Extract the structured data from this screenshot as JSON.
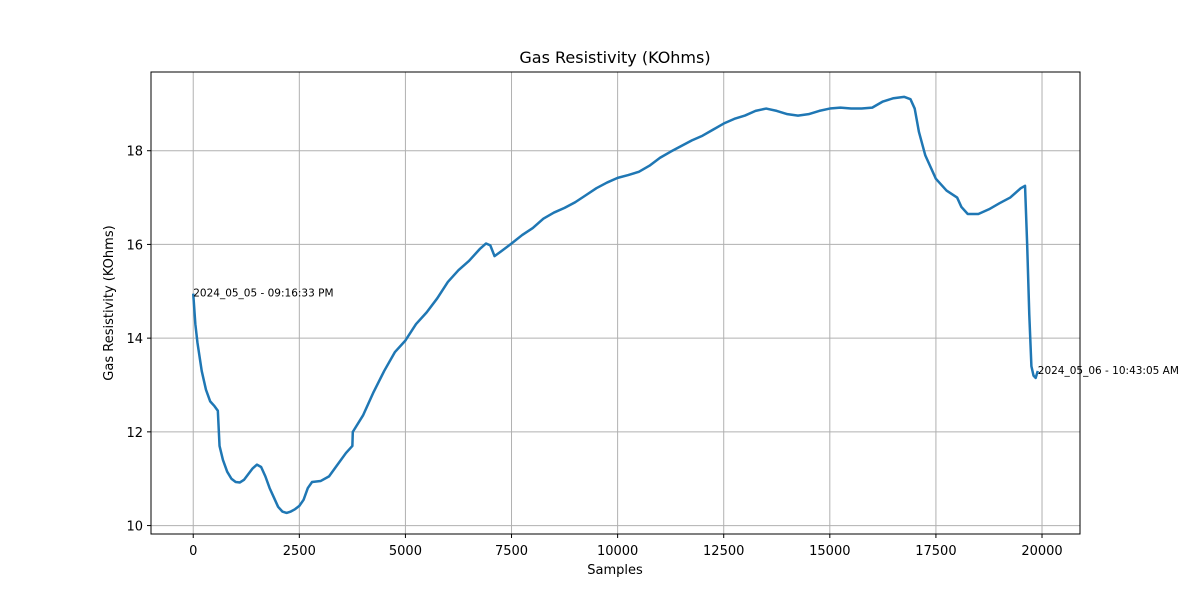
{
  "chart_data": {
    "type": "line",
    "title": "Gas Resistivity (KOhms)",
    "x_label": "Samples",
    "y_label": "Gas Resistivity (KOhms)",
    "x": [
      0,
      50,
      100,
      200,
      300,
      400,
      500,
      580,
      620,
      700,
      800,
      900,
      1000,
      1100,
      1200,
      1300,
      1400,
      1500,
      1600,
      1700,
      1800,
      1900,
      2000,
      2100,
      2200,
      2300,
      2400,
      2500,
      2600,
      2700,
      2800,
      3000,
      3200,
      3400,
      3600,
      3750,
      3760,
      4000,
      4250,
      4500,
      4750,
      5000,
      5250,
      5500,
      5750,
      6000,
      6250,
      6500,
      6750,
      6900,
      7000,
      7100,
      7250,
      7500,
      7750,
      8000,
      8250,
      8500,
      8750,
      9000,
      9250,
      9500,
      9750,
      10000,
      10250,
      10500,
      10750,
      11000,
      11250,
      11500,
      11750,
      12000,
      12250,
      12500,
      12750,
      13000,
      13250,
      13500,
      13750,
      14000,
      14250,
      14500,
      14750,
      15000,
      15250,
      15500,
      15750,
      16000,
      16250,
      16500,
      16750,
      16900,
      17000,
      17100,
      17250,
      17500,
      17750,
      18000,
      18100,
      18250,
      18500,
      18750,
      19000,
      19250,
      19500,
      19600,
      19650,
      19700,
      19750,
      19800,
      19850,
      19900
    ],
    "series": [
      {
        "name": "Gas Resistivity",
        "color": "#1f77b4",
        "values": [
          14.95,
          14.3,
          13.9,
          13.3,
          12.9,
          12.65,
          12.55,
          12.45,
          11.7,
          11.4,
          11.15,
          11.0,
          10.93,
          10.92,
          10.98,
          11.1,
          11.22,
          11.3,
          11.25,
          11.05,
          10.8,
          10.6,
          10.4,
          10.3,
          10.27,
          10.3,
          10.35,
          10.42,
          10.55,
          10.8,
          10.93,
          10.95,
          11.05,
          11.3,
          11.55,
          11.7,
          12.0,
          12.35,
          12.85,
          13.3,
          13.7,
          13.95,
          14.3,
          14.55,
          14.85,
          15.2,
          15.45,
          15.65,
          15.9,
          16.02,
          15.98,
          15.75,
          15.85,
          16.02,
          16.2,
          16.35,
          16.55,
          16.68,
          16.78,
          16.9,
          17.05,
          17.2,
          17.32,
          17.42,
          17.48,
          17.55,
          17.68,
          17.85,
          17.98,
          18.1,
          18.22,
          18.32,
          18.45,
          18.58,
          18.68,
          18.75,
          18.85,
          18.9,
          18.85,
          18.78,
          18.75,
          18.78,
          18.85,
          18.9,
          18.92,
          18.9,
          18.9,
          18.92,
          19.05,
          19.12,
          19.15,
          19.1,
          18.9,
          18.4,
          17.9,
          17.4,
          17.15,
          17.0,
          16.8,
          16.65,
          16.65,
          16.75,
          16.88,
          17.0,
          17.2,
          17.25,
          16.0,
          14.5,
          13.4,
          13.2,
          13.15,
          13.3
        ]
      }
    ],
    "annotations": [
      {
        "text": "2024_05_05 - 09:16:33 PM",
        "x": 0,
        "y": 14.95
      },
      {
        "text": "2024_05_06 - 10:43:05 AM",
        "x": 19900,
        "y": 13.3
      }
    ],
    "xlim": [
      -995,
      20895
    ],
    "ylim": [
      9.82,
      19.68
    ],
    "xticks": [
      0,
      2500,
      5000,
      7500,
      10000,
      12500,
      15000,
      17500,
      20000
    ],
    "yticks": [
      10,
      12,
      14,
      16,
      18
    ],
    "grid": true
  }
}
